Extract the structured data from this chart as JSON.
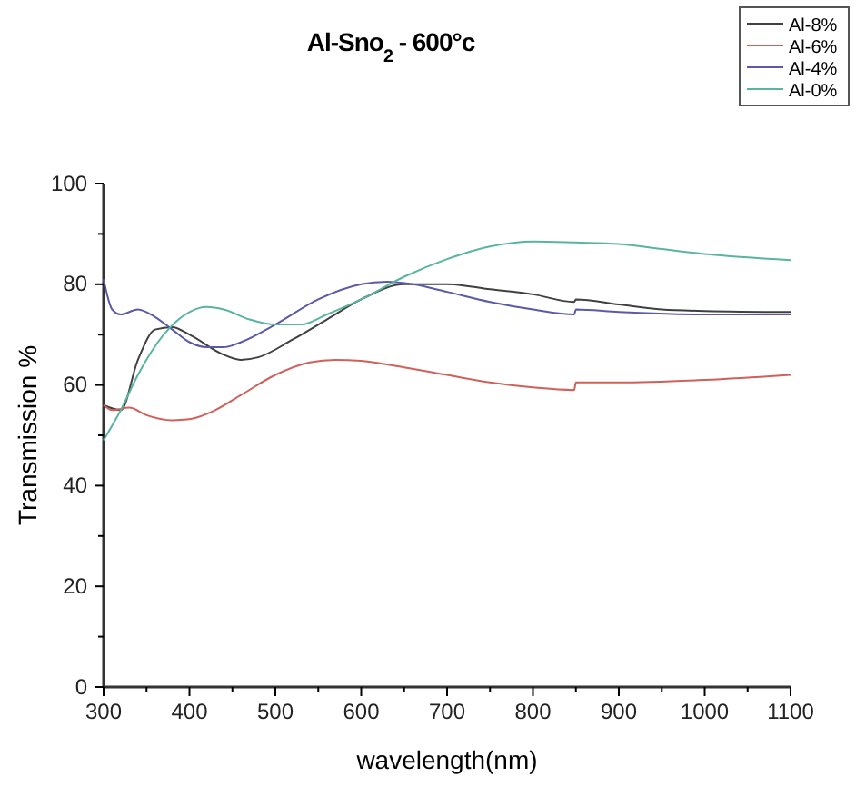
{
  "chart_data": {
    "type": "line",
    "title": "Al-Sno$_{2}$ - 600°c",
    "xlabel": "wavelength(nm)",
    "ylabel": "Transmission %",
    "xlim": [
      300,
      1100
    ],
    "ylim": [
      0,
      100
    ],
    "xticks": [
      300,
      {
        "value": 350,
        "label": null
      },
      400,
      {
        "value": 450,
        "label": null
      },
      500,
      {
        "value": 550,
        "label": null
      },
      600,
      {
        "value": 650,
        "label": null
      },
      700,
      {
        "value": 750,
        "label": null
      },
      800,
      {
        "value": 850,
        "label": null
      },
      900,
      {
        "value": 950,
        "label": null
      },
      1000,
      {
        "value": 1050,
        "label": null
      },
      1100
    ],
    "yticks": [
      0,
      {
        "value": 10,
        "label": null
      },
      20,
      {
        "value": 30,
        "label": null
      },
      40,
      {
        "value": 50,
        "label": null
      },
      60,
      {
        "value": 70,
        "label": null
      },
      80,
      {
        "value": 90,
        "label": null
      },
      100
    ],
    "grid": false,
    "legend": "top right",
    "line_style": "solid",
    "marker": "none",
    "series": [
      {
        "name": "Al-8%",
        "color": "#404040",
        "x": [
          300,
          320,
          340,
          360,
          380,
          400,
          440,
          460,
          480,
          520,
          560,
          600,
          650,
          700,
          750,
          800,
          848,
          850,
          900,
          950,
          1000,
          1100
        ],
        "values": [
          56,
          55,
          65,
          71,
          71.5,
          70,
          66,
          65,
          65.5,
          69,
          73,
          77,
          80,
          80,
          79,
          78,
          76.5,
          77,
          76,
          75,
          74.7,
          74.5
        ]
      },
      {
        "name": "Al-6%",
        "color": "#d0605a",
        "x": [
          300,
          310,
          330,
          350,
          380,
          400,
          430,
          460,
          500,
          540,
          570,
          600,
          650,
          700,
          750,
          800,
          848,
          850,
          900,
          1000,
          1100
        ],
        "values": [
          56,
          55,
          55.5,
          54,
          53,
          53.2,
          55,
          58,
          62,
          64.5,
          65,
          64.8,
          63.5,
          62,
          60.5,
          59.5,
          59,
          60.5,
          60.5,
          61,
          62
        ]
      },
      {
        "name": "Al-4%",
        "color": "#5a5aa8",
        "x": [
          300,
          310,
          320,
          340,
          360,
          380,
          400,
          420,
          440,
          460,
          500,
          550,
          600,
          630,
          660,
          700,
          750,
          800,
          848,
          850,
          900,
          1000,
          1100
        ],
        "values": [
          81,
          75,
          74,
          75,
          73.5,
          71,
          68.5,
          67.5,
          67.5,
          68.5,
          72,
          77,
          80,
          80.5,
          80,
          78.5,
          76.5,
          75,
          74,
          75,
          74.5,
          74,
          74
        ]
      },
      {
        "name": "Al-0%",
        "color": "#5ab4a0",
        "x": [
          300,
          320,
          340,
          370,
          400,
          420,
          440,
          470,
          500,
          530,
          560,
          600,
          650,
          700,
          750,
          800,
          850,
          900,
          950,
          1000,
          1100
        ],
        "values": [
          49,
          55,
          62,
          70,
          74.5,
          75.5,
          75,
          73,
          72,
          72,
          74,
          77,
          81.5,
          85,
          87.5,
          88.5,
          88.3,
          88,
          87,
          86,
          84.8
        ]
      }
    ]
  }
}
